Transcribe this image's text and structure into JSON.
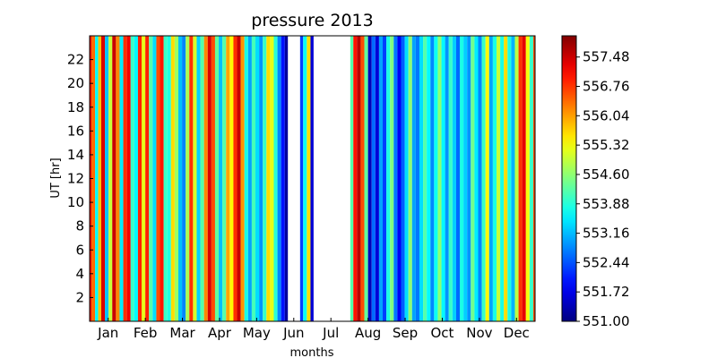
{
  "chart_data": {
    "type": "heatmap",
    "title": "pressure 2013",
    "xlabel": "months",
    "ylabel": "UT [hr]",
    "x_tick_labels": [
      "Jan",
      "Feb",
      "Mar",
      "Apr",
      "May",
      "Jun",
      "Jul",
      "Aug",
      "Sep",
      "Oct",
      "Nov",
      "Dec"
    ],
    "y_tick_labels": [
      "2",
      "4",
      "6",
      "8",
      "10",
      "12",
      "14",
      "16",
      "18",
      "20",
      "22"
    ],
    "y_ticks": [
      2,
      4,
      6,
      8,
      10,
      12,
      14,
      16,
      18,
      20,
      22
    ],
    "ylim": [
      0,
      24
    ],
    "x_range_days": [
      1,
      365
    ],
    "colormap": "jet",
    "colorbar": {
      "min": 551.0,
      "max": 558.0,
      "tick_labels": [
        "551.00",
        "551.72",
        "552.44",
        "553.16",
        "553.88",
        "554.60",
        "555.32",
        "556.04",
        "556.76",
        "557.48"
      ],
      "tick_values": [
        551.0,
        551.72,
        552.44,
        553.16,
        553.88,
        554.6,
        555.32,
        556.04,
        556.76,
        557.48
      ]
    },
    "missing_data_days": [
      [
        163,
        173
      ],
      [
        184,
        214
      ]
    ],
    "pressure_by_day": [
      [
        1,
        557.2
      ],
      [
        4,
        556.4
      ],
      [
        7,
        553.6
      ],
      [
        9,
        555.8
      ],
      [
        12,
        557.4
      ],
      [
        15,
        553.2
      ],
      [
        18,
        555.0
      ],
      [
        21,
        557.5
      ],
      [
        24,
        556.2
      ],
      [
        27,
        553.5
      ],
      [
        30,
        556.8
      ],
      [
        33,
        557.2
      ],
      [
        36,
        554.0
      ],
      [
        39,
        553.6
      ],
      [
        42,
        556.9
      ],
      [
        45,
        555.2
      ],
      [
        48,
        556.9
      ],
      [
        51,
        554.2
      ],
      [
        54,
        553.4
      ],
      [
        57,
        556.6
      ],
      [
        60,
        557.0
      ],
      [
        63,
        554.0
      ],
      [
        66,
        553.8
      ],
      [
        69,
        555.6
      ],
      [
        72,
        554.7
      ],
      [
        75,
        553.2
      ],
      [
        78,
        552.8
      ],
      [
        81,
        554.8
      ],
      [
        84,
        556.8
      ],
      [
        87,
        555.1
      ],
      [
        90,
        553.3
      ],
      [
        93,
        554.2
      ],
      [
        96,
        556.2
      ],
      [
        99,
        557.4
      ],
      [
        102,
        556.6
      ],
      [
        105,
        554.3
      ],
      [
        108,
        553.2
      ],
      [
        111,
        554.2
      ],
      [
        114,
        556.0
      ],
      [
        117,
        555.4
      ],
      [
        120,
        556.8
      ],
      [
        123,
        557.5
      ],
      [
        126,
        556.1
      ],
      [
        129,
        553.8
      ],
      [
        132,
        553.0
      ],
      [
        135,
        554.1
      ],
      [
        138,
        553.4
      ],
      [
        141,
        552.9
      ],
      [
        144,
        554.0
      ],
      [
        147,
        555.6
      ],
      [
        150,
        555.2
      ],
      [
        153,
        553.9
      ],
      [
        156,
        552.8
      ],
      [
        159,
        552.0
      ],
      [
        162,
        551.2
      ],
      [
        174,
        552.3
      ],
      [
        177,
        553.7
      ],
      [
        180,
        555.6
      ],
      [
        183,
        551.6
      ],
      [
        215,
        554.2
      ],
      [
        218,
        557.0
      ],
      [
        221,
        557.6
      ],
      [
        224,
        556.6
      ],
      [
        227,
        554.3
      ],
      [
        230,
        551.4
      ],
      [
        233,
        552.6
      ],
      [
        236,
        551.6
      ],
      [
        239,
        553.0
      ],
      [
        242,
        552.3
      ],
      [
        245,
        553.8
      ],
      [
        248,
        554.5
      ],
      [
        251,
        552.7
      ],
      [
        254,
        551.8
      ],
      [
        257,
        552.5
      ],
      [
        260,
        553.4
      ],
      [
        263,
        554.6
      ],
      [
        266,
        553.0
      ],
      [
        269,
        552.7
      ],
      [
        272,
        553.4
      ],
      [
        275,
        554.2
      ],
      [
        278,
        553.6
      ],
      [
        281,
        552.8
      ],
      [
        284,
        553.7
      ],
      [
        287,
        554.6
      ],
      [
        290,
        553.6
      ],
      [
        293,
        552.9
      ],
      [
        296,
        554.0
      ],
      [
        299,
        553.3
      ],
      [
        302,
        552.6
      ],
      [
        305,
        553.8
      ],
      [
        308,
        553.3
      ],
      [
        311,
        552.9
      ],
      [
        314,
        554.4
      ],
      [
        317,
        553.5
      ],
      [
        320,
        552.8
      ],
      [
        323,
        554.0
      ],
      [
        326,
        555.4
      ],
      [
        329,
        553.0
      ],
      [
        332,
        553.8
      ],
      [
        335,
        555.0
      ],
      [
        338,
        553.8
      ],
      [
        341,
        555.6
      ],
      [
        344,
        553.8
      ],
      [
        347,
        553.1
      ],
      [
        350,
        554.9
      ],
      [
        353,
        556.8
      ],
      [
        356,
        557.3
      ],
      [
        359,
        555.3
      ],
      [
        362,
        554.0
      ],
      [
        365,
        556.6
      ]
    ]
  }
}
